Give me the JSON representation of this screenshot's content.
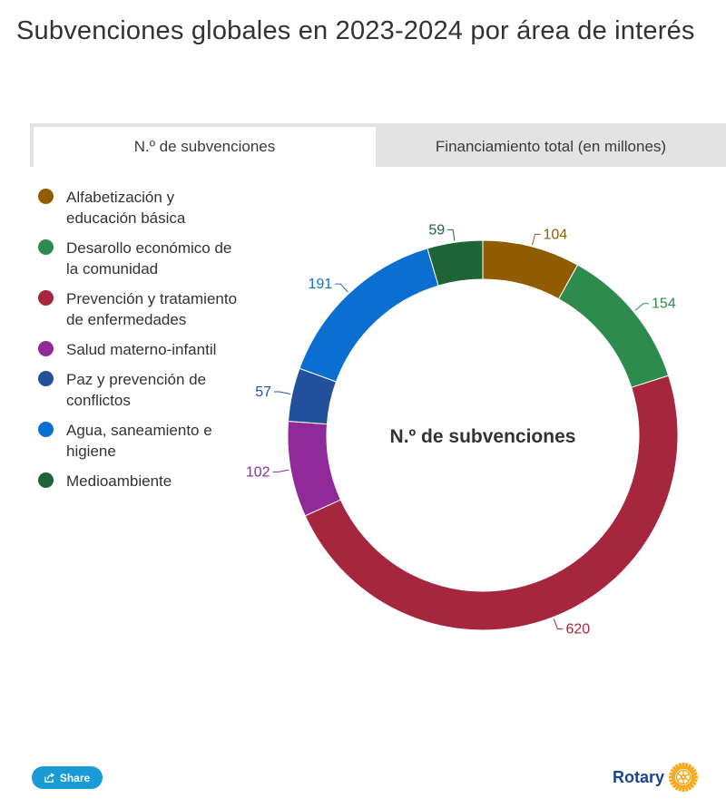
{
  "title": "Subvenciones globales en 2023-2024 por área de interés",
  "tabs": [
    {
      "label": "N.º de subvenciones",
      "active": true
    },
    {
      "label": "Financiamiento total (en millones)",
      "active": false
    }
  ],
  "share_label": "Share",
  "brand_label": "Rotary",
  "colors": {
    "brand": "#17458f",
    "share_button": "#1a9ad6",
    "logo_gold": "#f7a81b"
  },
  "chart_data": {
    "type": "pie",
    "variant": "donut",
    "center_label": "N.º de subvenciones",
    "legend_position": "left",
    "slices": [
      {
        "label": "Alfabetización y educación básica",
        "value": 104,
        "color": "#915c00"
      },
      {
        "label": "Desarollo económico de la comunidad",
        "value": 154,
        "color": "#2e8b4e"
      },
      {
        "label": "Prevención y tratamiento de enfermedades",
        "value": 620,
        "color": "#a6263d"
      },
      {
        "label": "Salud materno-infantil",
        "value": 102,
        "color": "#8f2a98"
      },
      {
        "label": "Paz y prevención de conflictos",
        "value": 57,
        "color": "#22509b"
      },
      {
        "label": "Agua, saneamiento e higiene",
        "value": 191,
        "color": "#0b6fd2"
      },
      {
        "label": "Medioambiente",
        "value": 59,
        "color": "#1f6436"
      }
    ]
  }
}
